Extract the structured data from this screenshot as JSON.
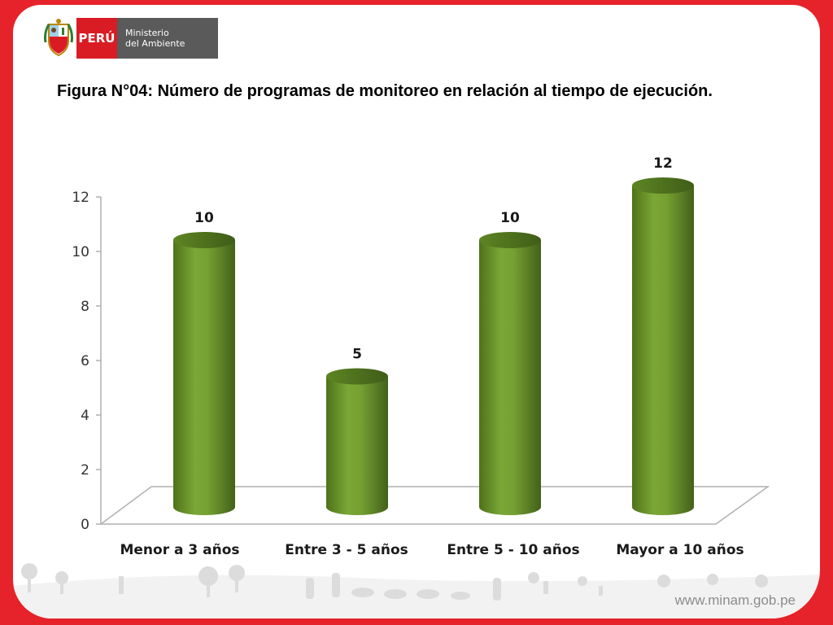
{
  "header": {
    "country": "PERÚ",
    "ministry_line1": "Ministerio",
    "ministry_line2": "del Ambiente"
  },
  "caption": "Figura N°04: Número de programas de monitoreo en relación al tiempo de ejecución.",
  "footer": {
    "url": "www.minam.gob.pe"
  },
  "colors": {
    "frame": "#e6232a",
    "bar": "#6f9a2a",
    "bar_dark": "#4c6d18"
  },
  "chart_data": {
    "type": "bar",
    "style": "3d-cylinder",
    "categories": [
      "Menor a 3 años",
      "Entre 3 - 5 años",
      "Entre 5 - 10 años",
      "Mayor a 10 años"
    ],
    "values": [
      10,
      5,
      10,
      12
    ],
    "ylim": [
      0,
      12
    ],
    "yticks": [
      "0",
      "2",
      "4",
      "6",
      "8",
      "10",
      "12"
    ],
    "data_labels": [
      "10",
      "5",
      "10",
      "12"
    ],
    "grid": false,
    "legend": "none"
  }
}
